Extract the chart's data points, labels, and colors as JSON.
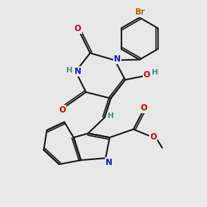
{
  "bg_color": "#e8e8e8",
  "bond_color": "#1a1a1a",
  "bond_width": 1.6,
  "colors": {
    "N": "#1515cc",
    "O": "#cc0000",
    "Br": "#bb6600",
    "H": "#4a8888",
    "C": "#1a1a1a"
  },
  "font_size": 8.5
}
